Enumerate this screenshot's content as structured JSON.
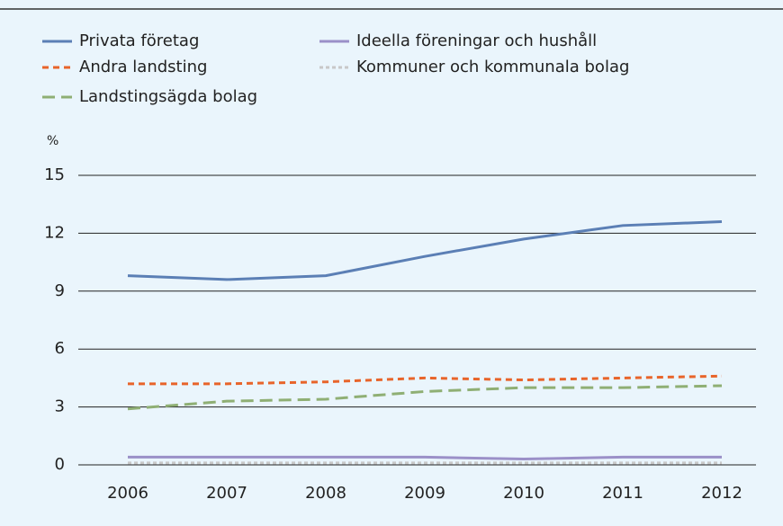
{
  "chart_data": {
    "type": "line",
    "y_label": "%",
    "categories": [
      "2006",
      "2007",
      "2008",
      "2009",
      "2010",
      "2011",
      "2012"
    ],
    "series": [
      {
        "name": "Privata företag",
        "color": "#5b7fb5",
        "dash": "solid",
        "values": [
          9.8,
          9.6,
          9.8,
          10.8,
          11.7,
          12.4,
          12.6
        ]
      },
      {
        "name": "Ideella föreningar och hushåll",
        "color": "#9b90c8",
        "dash": "solid",
        "values": [
          0.4,
          0.4,
          0.4,
          0.4,
          0.3,
          0.4,
          0.4
        ]
      },
      {
        "name": "Andra landsting",
        "color": "#e8642a",
        "dash": "short",
        "values": [
          4.2,
          4.2,
          4.3,
          4.5,
          4.4,
          4.5,
          4.6
        ]
      },
      {
        "name": "Kommuner och kommunala bolag",
        "color": "#c8c8c8",
        "dash": "dotted",
        "values": [
          0.1,
          0.1,
          0.1,
          0.1,
          0.1,
          0.1,
          0.1
        ]
      },
      {
        "name": "Landstingsägda bolag",
        "color": "#8faf74",
        "dash": "long",
        "values": [
          2.9,
          3.3,
          3.4,
          3.8,
          4.0,
          4.0,
          4.1
        ]
      }
    ],
    "ylim": [
      0,
      15
    ],
    "yticks": [
      0,
      3,
      6,
      9,
      12,
      15
    ],
    "grid": true
  }
}
